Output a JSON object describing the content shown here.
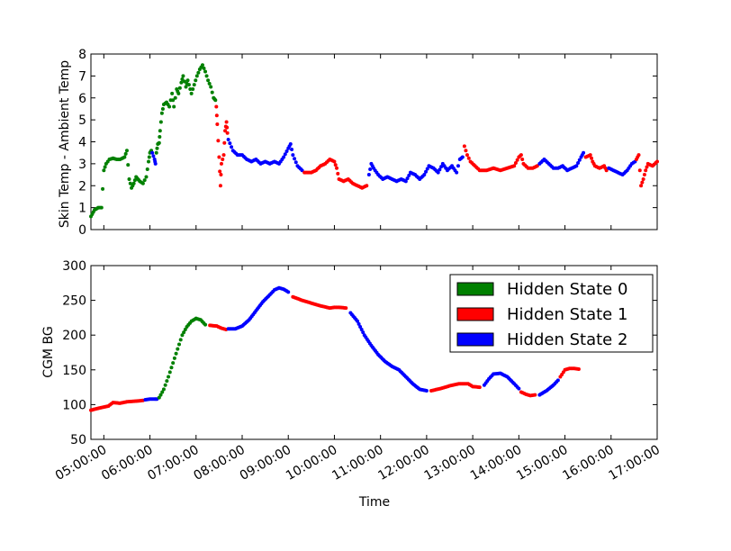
{
  "chart_data": [
    {
      "type": "scatter",
      "ylabel": "Skin Temp - Ambient Temp",
      "xlabel": "",
      "ylim": [
        0,
        8
      ],
      "yticks": [
        "0",
        "1",
        "2",
        "3",
        "4",
        "5",
        "6",
        "7",
        "8"
      ],
      "x_unit": "hours",
      "xlim": [
        4.72,
        17.0
      ],
      "segments": [
        {
          "state": 0,
          "points": [
            [
              4.72,
              0.6
            ],
            [
              4.8,
              0.9
            ],
            [
              4.88,
              1.0
            ],
            [
              4.95,
              1.0
            ],
            [
              5.0,
              2.7
            ],
            [
              5.05,
              3.0
            ],
            [
              5.12,
              3.2
            ],
            [
              5.2,
              3.25
            ],
            [
              5.28,
              3.2
            ],
            [
              5.35,
              3.2
            ],
            [
              5.45,
              3.3
            ],
            [
              5.5,
              3.6
            ],
            [
              5.55,
              2.3
            ],
            [
              5.6,
              1.9
            ],
            [
              5.65,
              2.1
            ],
            [
              5.7,
              2.4
            ],
            [
              5.78,
              2.2
            ],
            [
              5.85,
              2.1
            ],
            [
              5.92,
              2.4
            ],
            [
              5.97,
              3.1
            ],
            [
              6.0,
              3.5
            ],
            [
              6.03,
              3.6
            ]
          ]
        },
        {
          "state": 2,
          "points": [
            [
              6.05,
              3.5
            ],
            [
              6.1,
              3.2
            ],
            [
              6.12,
              3.0
            ]
          ]
        },
        {
          "state": 0,
          "points": [
            [
              6.14,
              3.5
            ],
            [
              6.17,
              3.9
            ],
            [
              6.2,
              3.95
            ],
            [
              6.22,
              4.5
            ],
            [
              6.26,
              5.3
            ],
            [
              6.3,
              5.7
            ],
            [
              6.36,
              5.8
            ],
            [
              6.42,
              5.6
            ],
            [
              6.48,
              6.2
            ],
            [
              6.52,
              5.6
            ],
            [
              6.58,
              6.4
            ],
            [
              6.62,
              6.2
            ],
            [
              6.68,
              6.7
            ],
            [
              6.72,
              7.0
            ],
            [
              6.78,
              6.5
            ],
            [
              6.82,
              6.8
            ],
            [
              6.9,
              6.2
            ],
            [
              6.96,
              6.6
            ],
            [
              7.02,
              7.0
            ],
            [
              7.08,
              7.3
            ],
            [
              7.14,
              7.5
            ],
            [
              7.2,
              7.2
            ],
            [
              7.26,
              6.8
            ],
            [
              7.32,
              6.5
            ],
            [
              7.38,
              6.0
            ],
            [
              7.42,
              5.9
            ]
          ]
        },
        {
          "state": 1,
          "points": [
            [
              7.44,
              5.6
            ],
            [
              7.46,
              4.8
            ],
            [
              7.5,
              3.3
            ],
            [
              7.53,
              2.0
            ],
            [
              7.55,
              3.0
            ],
            [
              7.6,
              3.4
            ],
            [
              7.63,
              4.5
            ],
            [
              7.66,
              4.9
            ],
            [
              7.68,
              4.4
            ]
          ]
        },
        {
          "state": 2,
          "points": [
            [
              7.7,
              4.1
            ],
            [
              7.8,
              3.6
            ],
            [
              7.9,
              3.4
            ],
            [
              8.0,
              3.4
            ],
            [
              8.1,
              3.2
            ],
            [
              8.2,
              3.1
            ],
            [
              8.3,
              3.2
            ],
            [
              8.4,
              3.0
            ],
            [
              8.5,
              3.1
            ],
            [
              8.6,
              3.0
            ],
            [
              8.7,
              3.1
            ],
            [
              8.8,
              3.0
            ],
            [
              8.9,
              3.3
            ],
            [
              9.0,
              3.7
            ],
            [
              9.05,
              3.9
            ],
            [
              9.1,
              3.4
            ],
            [
              9.2,
              2.9
            ],
            [
              9.3,
              2.7
            ]
          ]
        },
        {
          "state": 1,
          "points": [
            [
              9.35,
              2.6
            ],
            [
              9.5,
              2.6
            ],
            [
              9.6,
              2.7
            ],
            [
              9.7,
              2.9
            ],
            [
              9.8,
              3.0
            ],
            [
              9.9,
              3.2
            ],
            [
              10.0,
              3.1
            ],
            [
              10.05,
              2.8
            ],
            [
              10.1,
              2.3
            ],
            [
              10.2,
              2.2
            ],
            [
              10.3,
              2.3
            ],
            [
              10.4,
              2.1
            ],
            [
              10.5,
              2.0
            ],
            [
              10.6,
              1.9
            ],
            [
              10.7,
              2.0
            ]
          ]
        },
        {
          "state": 2,
          "points": [
            [
              10.75,
              2.5
            ],
            [
              10.8,
              3.0
            ],
            [
              10.85,
              2.8
            ],
            [
              10.95,
              2.5
            ],
            [
              11.05,
              2.3
            ],
            [
              11.15,
              2.4
            ],
            [
              11.25,
              2.3
            ],
            [
              11.35,
              2.2
            ],
            [
              11.45,
              2.3
            ],
            [
              11.55,
              2.2
            ],
            [
              11.65,
              2.6
            ],
            [
              11.75,
              2.5
            ],
            [
              11.85,
              2.3
            ],
            [
              11.95,
              2.5
            ],
            [
              12.05,
              2.9
            ],
            [
              12.15,
              2.8
            ],
            [
              12.25,
              2.6
            ],
            [
              12.35,
              3.0
            ],
            [
              12.45,
              2.7
            ],
            [
              12.55,
              2.9
            ],
            [
              12.65,
              2.6
            ],
            [
              12.72,
              3.2
            ],
            [
              12.78,
              3.3
            ]
          ]
        },
        {
          "state": 1,
          "points": [
            [
              12.82,
              3.8
            ],
            [
              12.88,
              3.4
            ],
            [
              12.95,
              3.1
            ],
            [
              13.05,
              2.9
            ],
            [
              13.15,
              2.7
            ],
            [
              13.3,
              2.7
            ],
            [
              13.45,
              2.8
            ],
            [
              13.6,
              2.7
            ],
            [
              13.75,
              2.8
            ],
            [
              13.9,
              2.9
            ],
            [
              14.0,
              3.3
            ],
            [
              14.05,
              3.4
            ],
            [
              14.1,
              3.0
            ],
            [
              14.2,
              2.8
            ],
            [
              14.3,
              2.8
            ],
            [
              14.4,
              2.9
            ]
          ]
        },
        {
          "state": 2,
          "points": [
            [
              14.45,
              3.0
            ],
            [
              14.55,
              3.2
            ],
            [
              14.65,
              3.0
            ],
            [
              14.75,
              2.8
            ],
            [
              14.85,
              2.8
            ],
            [
              14.95,
              2.9
            ],
            [
              15.05,
              2.7
            ],
            [
              15.15,
              2.8
            ],
            [
              15.25,
              2.9
            ],
            [
              15.35,
              3.3
            ],
            [
              15.4,
              3.5
            ]
          ]
        },
        {
          "state": 1,
          "points": [
            [
              15.45,
              3.3
            ],
            [
              15.55,
              3.4
            ],
            [
              15.6,
              3.1
            ],
            [
              15.65,
              2.9
            ],
            [
              15.75,
              2.8
            ],
            [
              15.85,
              2.9
            ],
            [
              15.9,
              2.7
            ]
          ]
        },
        {
          "state": 2,
          "points": [
            [
              15.95,
              2.8
            ],
            [
              16.05,
              2.7
            ],
            [
              16.15,
              2.6
            ],
            [
              16.25,
              2.5
            ],
            [
              16.35,
              2.7
            ],
            [
              16.45,
              3.0
            ],
            [
              16.52,
              3.1
            ]
          ]
        },
        {
          "state": 1,
          "points": [
            [
              16.55,
              3.2
            ],
            [
              16.6,
              3.4
            ],
            [
              16.65,
              2.0
            ],
            [
              16.7,
              2.3
            ],
            [
              16.75,
              2.7
            ],
            [
              16.8,
              3.0
            ],
            [
              16.9,
              2.9
            ],
            [
              17.0,
              3.1
            ]
          ]
        }
      ]
    },
    {
      "type": "scatter",
      "ylabel": "CGM BG",
      "xlabel": "Time",
      "ylim": [
        50,
        300
      ],
      "yticks": [
        "50",
        "100",
        "150",
        "200",
        "250",
        "300"
      ],
      "xlim": [
        4.72,
        17.0
      ],
      "xticks": [
        "05:00:00",
        "06:00:00",
        "07:00:00",
        "08:00:00",
        "09:00:00",
        "10:00:00",
        "11:00:00",
        "12:00:00",
        "13:00:00",
        "14:00:00",
        "15:00:00",
        "16:00:00",
        "17:00:00"
      ],
      "legend_position": "top-right",
      "legend": [
        "Hidden State 0",
        "Hidden State 1",
        "Hidden State 2"
      ],
      "state_colors": [
        "#008000",
        "#ff0000",
        "#0000ff"
      ],
      "segments": [
        {
          "state": 1,
          "points": [
            [
              4.72,
              92
            ],
            [
              4.9,
              95
            ],
            [
              5.1,
              98
            ],
            [
              5.2,
              103
            ],
            [
              5.35,
              102
            ],
            [
              5.5,
              104
            ],
            [
              5.7,
              105
            ],
            [
              5.85,
              106
            ]
          ]
        },
        {
          "state": 2,
          "points": [
            [
              5.9,
              107
            ],
            [
              6.0,
              108
            ],
            [
              6.1,
              108
            ],
            [
              6.15,
              108
            ]
          ]
        },
        {
          "state": 0,
          "points": [
            [
              6.2,
              110
            ],
            [
              6.3,
              122
            ],
            [
              6.4,
              140
            ],
            [
              6.5,
              160
            ],
            [
              6.6,
              180
            ],
            [
              6.7,
              200
            ],
            [
              6.8,
              212
            ],
            [
              6.9,
              220
            ],
            [
              7.0,
              224
            ],
            [
              7.1,
              222
            ],
            [
              7.2,
              215
            ]
          ]
        },
        {
          "state": 1,
          "points": [
            [
              7.3,
              214
            ],
            [
              7.45,
              213
            ],
            [
              7.55,
              210
            ],
            [
              7.65,
              208
            ]
          ]
        },
        {
          "state": 2,
          "points": [
            [
              7.7,
              209
            ],
            [
              7.85,
              209
            ],
            [
              8.0,
              213
            ],
            [
              8.15,
              222
            ],
            [
              8.3,
              235
            ],
            [
              8.45,
              248
            ],
            [
              8.6,
              258
            ],
            [
              8.7,
              265
            ],
            [
              8.8,
              268
            ],
            [
              8.9,
              266
            ],
            [
              9.0,
              262
            ]
          ]
        },
        {
          "state": 1,
          "points": [
            [
              9.1,
              255
            ],
            [
              9.3,
              250
            ],
            [
              9.5,
              246
            ],
            [
              9.7,
              242
            ],
            [
              9.9,
              239
            ],
            [
              10.0,
              240
            ],
            [
              10.1,
              240
            ],
            [
              10.25,
              239
            ]
          ]
        },
        {
          "state": 2,
          "points": [
            [
              10.35,
              232
            ],
            [
              10.5,
              220
            ],
            [
              10.65,
              200
            ],
            [
              10.8,
              185
            ],
            [
              10.95,
              172
            ],
            [
              11.1,
              162
            ],
            [
              11.25,
              155
            ],
            [
              11.4,
              150
            ],
            [
              11.55,
              140
            ],
            [
              11.7,
              130
            ],
            [
              11.85,
              122
            ],
            [
              12.0,
              120
            ]
          ]
        },
        {
          "state": 1,
          "points": [
            [
              12.1,
              120
            ],
            [
              12.3,
              123
            ],
            [
              12.5,
              127
            ],
            [
              12.7,
              130
            ],
            [
              12.9,
              130
            ],
            [
              13.0,
              126
            ],
            [
              13.15,
              125
            ]
          ]
        },
        {
          "state": 2,
          "points": [
            [
              13.25,
              128
            ],
            [
              13.35,
              137
            ],
            [
              13.45,
              144
            ],
            [
              13.6,
              145
            ],
            [
              13.75,
              140
            ],
            [
              13.9,
              130
            ],
            [
              14.0,
              123
            ]
          ]
        },
        {
          "state": 1,
          "points": [
            [
              14.05,
              118
            ],
            [
              14.15,
              115
            ],
            [
              14.25,
              113
            ],
            [
              14.35,
              114
            ]
          ]
        },
        {
          "state": 2,
          "points": [
            [
              14.45,
              114
            ],
            [
              14.6,
              120
            ],
            [
              14.75,
              128
            ],
            [
              14.85,
              135
            ]
          ]
        },
        {
          "state": 1,
          "points": [
            [
              14.9,
              140
            ],
            [
              15.0,
              150
            ],
            [
              15.1,
              152
            ],
            [
              15.2,
              152
            ],
            [
              15.3,
              151
            ]
          ]
        }
      ]
    }
  ]
}
